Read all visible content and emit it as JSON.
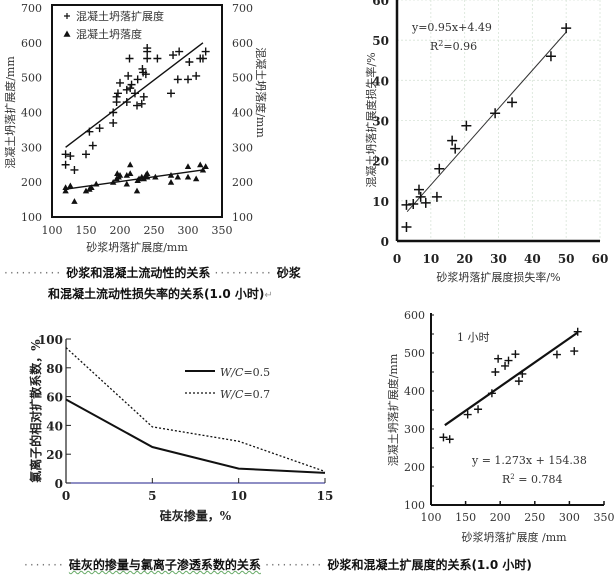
{
  "chart_data": [
    {
      "type": "scatter",
      "title": "砂浆和混凝土流动性的关系",
      "xlabel": "砂浆坍落扩展度/mm",
      "ylabel": "混凝土坍落扩展度/mm",
      "ylabel_right": "混凝土坍落度/mm",
      "xlim": [
        100,
        350
      ],
      "ylim": [
        100,
        700
      ],
      "xticks": [
        "100",
        "150",
        "200",
        "250",
        "300",
        "350"
      ],
      "yticks": [
        "100",
        "200",
        "300",
        "400",
        "500",
        "600",
        "700"
      ],
      "legend_position": "top-left",
      "series": [
        {
          "name": "混凝土坍落扩展度",
          "marker": "plus",
          "points": [
            [
              120,
              250
            ],
            [
              120,
              280
            ],
            [
              127,
              275
            ],
            [
              133,
              235
            ],
            [
              150,
              280
            ],
            [
              155,
              345
            ],
            [
              160,
              305
            ],
            [
              170,
              355
            ],
            [
              190,
              370
            ],
            [
              190,
              400
            ],
            [
              195,
              430
            ],
            [
              195,
              445
            ],
            [
              197,
              455
            ],
            [
              200,
              485
            ],
            [
              210,
              430
            ],
            [
              210,
              465
            ],
            [
              212,
              505
            ],
            [
              214,
              555
            ],
            [
              215,
              470
            ],
            [
              217,
              480
            ],
            [
              222,
              455
            ],
            [
              225,
              420
            ],
            [
              226,
              495
            ],
            [
              232,
              425
            ],
            [
              233,
              525
            ],
            [
              234,
              515
            ],
            [
              235,
              445
            ],
            [
              238,
              510
            ],
            [
              240,
              555
            ],
            [
              240,
              575
            ],
            [
              240,
              585
            ],
            [
              255,
              555
            ],
            [
              275,
              455
            ],
            [
              278,
              565
            ],
            [
              285,
              495
            ],
            [
              287,
              575
            ],
            [
              300,
              495
            ],
            [
              302,
              545
            ],
            [
              312,
              505
            ],
            [
              318,
              555
            ],
            [
              322,
              555
            ],
            [
              326,
              575
            ]
          ],
          "trend": [
            [
              120,
              300
            ],
            [
              322,
              600
            ]
          ]
        },
        {
          "name": "混凝土坍落度",
          "marker": "triangle",
          "points": [
            [
              120,
              175
            ],
            [
              120,
              185
            ],
            [
              127,
              190
            ],
            [
              133,
              145
            ],
            [
              150,
              175
            ],
            [
              155,
              180
            ],
            [
              158,
              185
            ],
            [
              165,
              195
            ],
            [
              190,
              200
            ],
            [
              195,
              210
            ],
            [
              196,
              225
            ],
            [
              198,
              215
            ],
            [
              200,
              220
            ],
            [
              210,
              220
            ],
            [
              210,
              195
            ],
            [
              215,
              225
            ],
            [
              215,
              250
            ],
            [
              225,
              175
            ],
            [
              226,
              205
            ],
            [
              228,
              210
            ],
            [
              232,
              215
            ],
            [
              235,
              210
            ],
            [
              238,
              220
            ],
            [
              240,
              225
            ],
            [
              240,
              215
            ],
            [
              252,
              215
            ],
            [
              275,
              200
            ],
            [
              275,
              220
            ],
            [
              285,
              215
            ],
            [
              300,
              215
            ],
            [
              300,
              245
            ],
            [
              312,
              210
            ],
            [
              318,
              250
            ],
            [
              322,
              235
            ],
            [
              326,
              245
            ]
          ],
          "trend": [
            [
              120,
              180
            ],
            [
              322,
              235
            ]
          ]
        }
      ]
    },
    {
      "type": "scatter",
      "title": "砂浆和混凝土流动性损失率的关系(1.0 小时)",
      "xlabel": "砂浆坍落扩展度损失率/%",
      "ylabel": "混凝土坍落扩展度损失率/%",
      "xlim": [
        0,
        60
      ],
      "ylim": [
        0,
        60
      ],
      "xticks": [
        "0",
        "10",
        "20",
        "30",
        "40",
        "50",
        "60"
      ],
      "yticks": [
        "0",
        "10",
        "20",
        "30",
        "40",
        "50",
        "60"
      ],
      "grid": true,
      "equation": "y=0.95x+4.49",
      "r2_label": "R",
      "r2_sup": "2",
      "r2_value": "=0.96",
      "series": [
        {
          "name": "points",
          "marker": "plus",
          "points": [
            [
              2.8,
              3.5
            ],
            [
              2.8,
              9
            ],
            [
              4.8,
              9.2
            ],
            [
              6.5,
              12.8
            ],
            [
              7,
              11
            ],
            [
              8.5,
              9.5
            ],
            [
              11.8,
              11
            ],
            [
              12.5,
              18
            ],
            [
              16.3,
              25
            ],
            [
              17.2,
              23
            ],
            [
              20.5,
              28.7
            ],
            [
              29,
              31.8
            ],
            [
              34,
              34.5
            ],
            [
              45.5,
              46
            ],
            [
              50,
              53
            ]
          ],
          "trend": [
            [
              3,
              7.3
            ],
            [
              50,
              52
            ]
          ]
        }
      ]
    },
    {
      "type": "line",
      "title": "硅灰的掺量与氯离子渗透系数的关系",
      "xlabel": "硅灰掺量，%",
      "ylabel": "氯离子的相对扩散系数，%",
      "xlim": [
        0,
        15
      ],
      "ylim": [
        0,
        100
      ],
      "xticks": [
        "0",
        "5",
        "10",
        "15"
      ],
      "yticks": [
        "0",
        "20",
        "40",
        "60",
        "80",
        "100"
      ],
      "legend_position": "top-right",
      "x": [
        0,
        5,
        10,
        15
      ],
      "series": [
        {
          "name_prefix": "W/C",
          "name_suffix": "=0.5",
          "style": "solid",
          "values": [
            58,
            25,
            10,
            7
          ]
        },
        {
          "name_prefix": "W/C",
          "name_suffix": "=0.7",
          "style": "dotted",
          "values": [
            94,
            39,
            29,
            8
          ]
        }
      ]
    },
    {
      "type": "scatter",
      "title": "砂浆和混凝土扩展度的关系(1.0 小时)",
      "xlabel": "砂浆坍落扩展度 /mm",
      "ylabel": "混凝土坍落扩展度/mm",
      "annotation": "1 小时",
      "equation": "y = 1.273x + 154.38",
      "r2_label": "R",
      "r2_sup": "2",
      "r2_value": " = 0.784",
      "xlim": [
        100,
        350
      ],
      "ylim": [
        100,
        600
      ],
      "xticks": [
        "100",
        "150",
        "200",
        "250",
        "300",
        "350"
      ],
      "yticks": [
        "100",
        "200",
        "300",
        "400",
        "500",
        "600"
      ],
      "series": [
        {
          "name": "points",
          "marker": "plus",
          "points": [
            [
              118,
              278
            ],
            [
              127,
              273
            ],
            [
              153,
              338
            ],
            [
              168,
              352
            ],
            [
              188,
              394
            ],
            [
              193,
              450
            ],
            [
              197,
              485
            ],
            [
              207,
              466
            ],
            [
              212,
              480
            ],
            [
              222,
              497
            ],
            [
              227,
              426
            ],
            [
              232,
              445
            ],
            [
              282,
              496
            ],
            [
              307,
              505
            ],
            [
              312,
              556
            ]
          ],
          "trend": [
            [
              120,
              310
            ],
            [
              312,
              554
            ]
          ]
        }
      ]
    }
  ],
  "captions": {
    "cap1a": "砂浆和混凝土流动性的关系",
    "cap1b": "砂浆",
    "cap1c": "和混凝土流动性损失率的关系(1.0 小时)",
    "cap3": "硅灰的掺量与氯离子渗透系数的关系",
    "cap4": "砂浆和混凝土扩展度的关系(1.0 小时)",
    "dots_short": "·······",
    "dots_long": "··········",
    "return_mark": "↵"
  }
}
